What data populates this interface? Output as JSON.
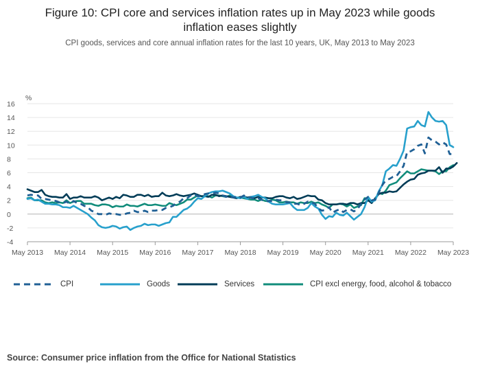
{
  "title_lines": [
    "Figure 10: CPI core and services inflation rates up in May 2023 while goods",
    "inflation eases slightly"
  ],
  "subtitle": "CPI goods, services and core annual inflation rates for the last 10 years, UK, May 2013 to May 2023",
  "source": "Source: Consumer price inflation from the Office for National Statistics",
  "chart_data": {
    "type": "line",
    "title": "Figure 10: CPI core and services inflation rates up in May 2023 while goods inflation eases slightly",
    "ylabel": "%",
    "ylim": [
      -4,
      16
    ],
    "yticks": [
      "16",
      "14",
      "12",
      "10",
      "8",
      "6",
      "4",
      "2",
      "0",
      "-2",
      "-4"
    ],
    "ytick_values": [
      16,
      14,
      12,
      10,
      8,
      6,
      4,
      2,
      0,
      -2,
      -4
    ],
    "xlim": [
      0,
      120
    ],
    "xticks": [
      "May 2013",
      "May 2014",
      "May 2015",
      "May 2016",
      "May 2017",
      "May 2018",
      "May 2019",
      "May 2020",
      "May 2021",
      "May 2022",
      "May 2023"
    ],
    "x_month_points": "monthly, May 2013 to May 2023",
    "grid": "horizontal",
    "legend_position": "bottom",
    "series": [
      {
        "name": "CPI",
        "color": "#206095",
        "dash": true,
        "values": [
          2.7,
          2.8,
          2.7,
          2.7,
          2.2,
          2.2,
          2.1,
          2.0,
          1.9,
          1.7,
          1.6,
          1.8,
          1.5,
          1.9,
          1.6,
          1.5,
          1.2,
          1.0,
          0.5,
          0.3,
          0.0,
          0.0,
          -0.1,
          0.1,
          0.0,
          0.0,
          -0.1,
          -0.1,
          0.1,
          0.2,
          0.5,
          0.3,
          0.3,
          0.5,
          0.3,
          0.5,
          0.5,
          0.6,
          0.6,
          0.9,
          1.0,
          1.2,
          1.6,
          1.8,
          2.3,
          2.3,
          2.7,
          2.9,
          2.6,
          2.6,
          2.9,
          3.0,
          3.0,
          3.1,
          3.0,
          2.7,
          2.5,
          2.7,
          2.4,
          2.5,
          2.4,
          2.7,
          2.4,
          2.4,
          2.2,
          2.3,
          2.1,
          1.8,
          1.9,
          1.9,
          2.1,
          2.0,
          2.0,
          1.7,
          1.7,
          1.5,
          1.5,
          1.3,
          1.5,
          1.8,
          1.7,
          1.5,
          0.8,
          0.5,
          0.6,
          1.0,
          0.2,
          0.5,
          0.7,
          0.3,
          0.6,
          0.7,
          0.4,
          0.7,
          1.5,
          2.1,
          2.5,
          2.0,
          2.1,
          3.1,
          4.2,
          4.9,
          5.1,
          5.4,
          5.5,
          6.2,
          7.0,
          9.0,
          9.1,
          9.4,
          9.9,
          10.1,
          8.8,
          11.1,
          10.7,
          10.5,
          10.1,
          10.4,
          10.1,
          8.7,
          8.7
        ],
        "values_note": "monthly May 2013 – May 2023"
      },
      {
        "name": "Goods",
        "color": "#27a0cc",
        "dash": false,
        "values": [
          2.2,
          2.3,
          2.0,
          2.1,
          1.8,
          1.5,
          1.5,
          1.4,
          1.4,
          1.3,
          1.0,
          1.0,
          0.9,
          1.2,
          0.9,
          0.6,
          0.3,
          0.0,
          -0.5,
          -0.9,
          -1.6,
          -1.9,
          -2.0,
          -1.9,
          -1.7,
          -1.8,
          -2.1,
          -1.9,
          -1.8,
          -2.3,
          -2.0,
          -1.8,
          -1.7,
          -1.4,
          -1.6,
          -1.5,
          -1.5,
          -1.7,
          -1.5,
          -1.3,
          -1.2,
          -0.4,
          -0.4,
          0.1,
          0.6,
          0.8,
          1.2,
          1.8,
          2.3,
          2.2,
          2.6,
          3.0,
          3.2,
          3.3,
          3.3,
          3.4,
          3.2,
          3.0,
          2.6,
          2.4,
          2.3,
          2.5,
          2.2,
          2.5,
          2.6,
          2.8,
          2.5,
          2.3,
          1.8,
          1.5,
          1.4,
          1.4,
          1.4,
          1.5,
          1.6,
          1.0,
          0.6,
          0.6,
          0.6,
          0.9,
          1.6,
          1.1,
          0.8,
          -0.1,
          -0.7,
          -0.3,
          -0.4,
          0.2,
          -0.1,
          -0.2,
          0.2,
          -0.3,
          -0.8,
          -0.4,
          0.0,
          1.0,
          2.5,
          1.8,
          2.0,
          3.3,
          4.2,
          6.2,
          6.6,
          7.1,
          7.0,
          8.0,
          9.2,
          12.4,
          12.6,
          12.7,
          13.5,
          12.9,
          12.7,
          14.8,
          14.0,
          13.5,
          13.4,
          13.5,
          12.9,
          10.0,
          9.7
        ],
        "values_note": "monthly May 2013 – May 2023"
      },
      {
        "name": "Services",
        "color": "#003c57",
        "dash": false,
        "values": [
          3.6,
          3.4,
          3.2,
          3.2,
          3.5,
          2.8,
          2.6,
          2.5,
          2.5,
          2.4,
          2.4,
          2.9,
          2.2,
          2.4,
          2.4,
          2.6,
          2.4,
          2.4,
          2.4,
          2.6,
          2.4,
          2.0,
          2.2,
          2.4,
          2.2,
          2.5,
          2.3,
          2.8,
          2.7,
          2.5,
          2.5,
          2.8,
          2.8,
          2.6,
          2.8,
          2.5,
          2.6,
          2.6,
          3.1,
          2.7,
          2.6,
          2.7,
          2.9,
          2.7,
          2.6,
          2.7,
          2.8,
          3.0,
          2.8,
          2.6,
          2.6,
          2.5,
          2.8,
          2.8,
          2.6,
          2.7,
          2.6,
          2.5,
          2.4,
          2.3,
          2.5,
          2.5,
          2.4,
          2.5,
          2.3,
          2.5,
          2.4,
          2.4,
          2.3,
          2.3,
          2.5,
          2.6,
          2.6,
          2.4,
          2.3,
          2.5,
          2.2,
          2.3,
          2.5,
          2.7,
          2.6,
          2.6,
          2.1,
          2.0,
          1.6,
          1.4,
          1.4,
          1.4,
          1.5,
          1.5,
          1.4,
          1.6,
          1.6,
          1.4,
          1.6,
          1.6,
          2.0,
          1.6,
          2.3,
          2.9,
          3.1,
          3.1,
          3.3,
          3.2,
          3.3,
          3.8,
          4.3,
          4.7,
          5.0,
          5.1,
          5.7,
          5.9,
          6.0,
          6.3,
          6.3,
          6.3,
          6.8,
          6.0,
          6.6,
          6.6,
          6.9,
          7.4
        ],
        "values_note": "monthly May 2013 – May 2023"
      },
      {
        "name": "CPI excl energy, food, alcohol & tobacco",
        "color": "#118c7b",
        "dash": false,
        "values": [
          2.3,
          2.4,
          2.0,
          2.0,
          2.0,
          1.7,
          1.6,
          1.7,
          1.6,
          1.7,
          1.6,
          2.0,
          1.6,
          1.8,
          1.9,
          1.9,
          1.5,
          1.5,
          1.5,
          1.3,
          1.2,
          1.4,
          1.4,
          1.3,
          1.0,
          1.2,
          1.1,
          1.1,
          1.4,
          1.2,
          1.2,
          1.1,
          1.3,
          1.5,
          1.3,
          1.3,
          1.4,
          1.3,
          1.2,
          1.2,
          1.6,
          1.4,
          1.3,
          1.5,
          1.7,
          2.1,
          2.1,
          2.4,
          2.7,
          2.6,
          2.6,
          2.6,
          2.4,
          2.7,
          2.7,
          2.6,
          2.5,
          2.7,
          2.5,
          2.4,
          2.4,
          2.3,
          2.2,
          2.1,
          2.1,
          1.9,
          2.1,
          1.9,
          1.9,
          2.1,
          2.0,
          1.7,
          1.7,
          1.8,
          1.7,
          1.7,
          1.5,
          1.7,
          1.6,
          1.6,
          1.8,
          1.6,
          1.7,
          1.4,
          1.2,
          0.9,
          1.4,
          1.4,
          1.5,
          1.4,
          1.1,
          1.4,
          0.9,
          1.1,
          1.3,
          2.3,
          2.3,
          1.8,
          2.1,
          3.1,
          2.9,
          3.4,
          4.2,
          4.4,
          4.6,
          5.2,
          5.7,
          6.2,
          5.9,
          5.9,
          6.2,
          6.5,
          6.4,
          6.3,
          6.3,
          6.2,
          5.8,
          6.2,
          6.2,
          6.8,
          7.1
        ],
        "values_note": "monthly May 2013 – May 2023"
      }
    ]
  }
}
